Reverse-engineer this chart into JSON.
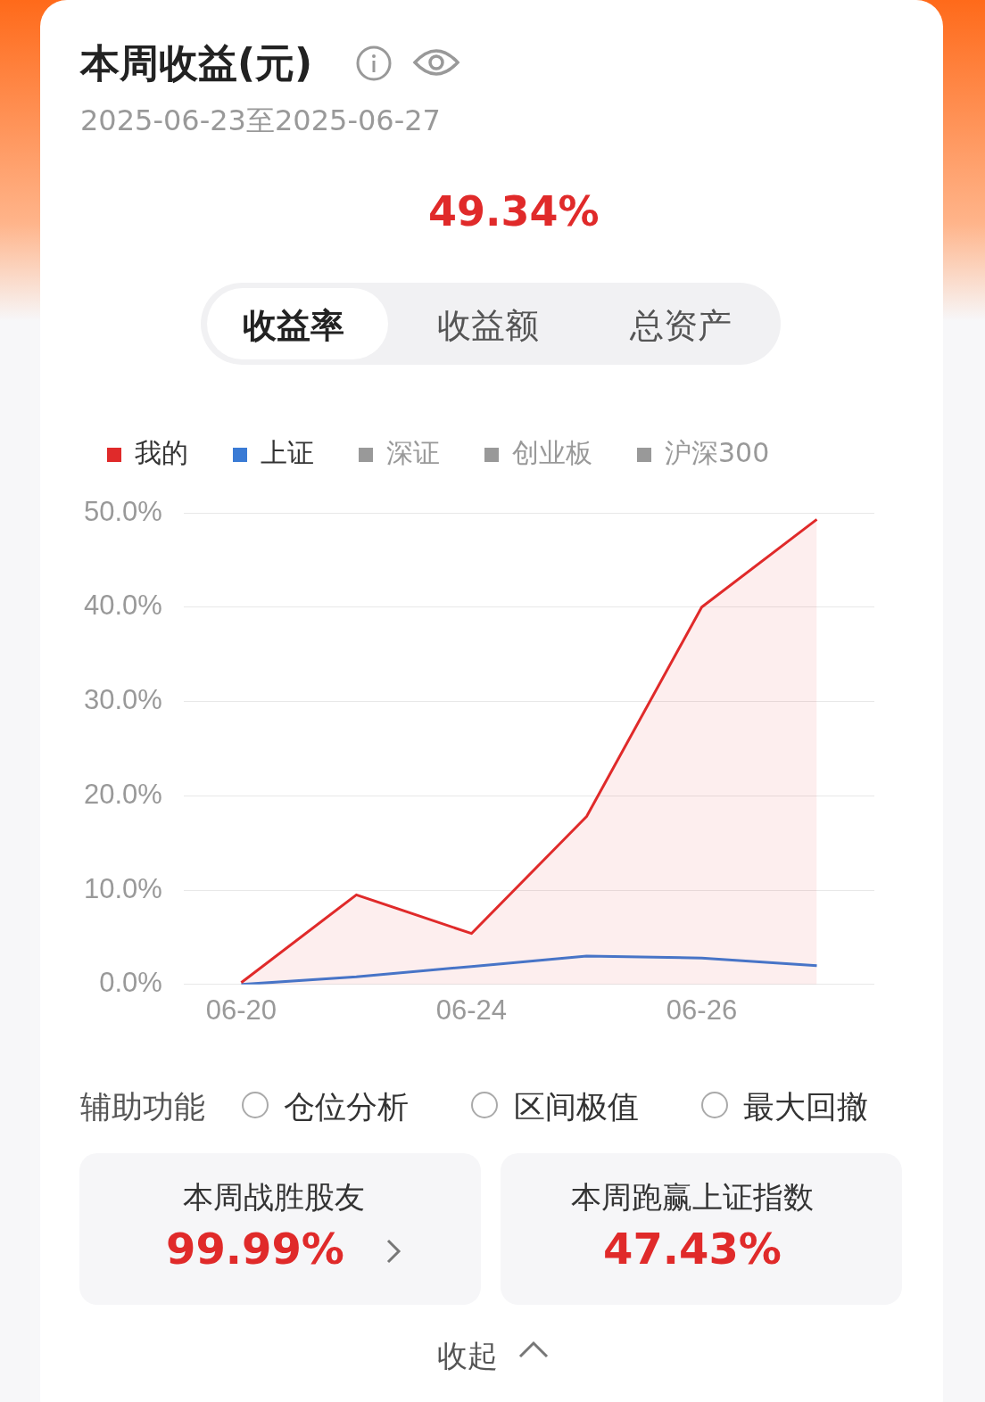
{
  "chart_data": {
    "type": "line",
    "title": "本周收益(元)",
    "subtitle": "2025-06-23至2025-06-27",
    "annotations": [
      "49.34%",
      "收益率",
      "收益额",
      "总资产",
      "辅助功能",
      "仓位分析",
      "区间极值",
      "最大回撤",
      "本周战胜股友",
      "99.99%",
      "本周跑赢上证指数",
      "47.43%",
      "收起"
    ],
    "categories": [
      "06-20",
      null,
      "06-24",
      null,
      "06-26",
      null
    ],
    "series": [
      {
        "name": "我的",
        "color": "#e02a2a",
        "type": "area",
        "values": [
          0.2,
          9.5,
          5.4,
          17.8,
          40.0,
          49.3
        ]
      },
      {
        "name": "上证",
        "color": "#3a7bd5",
        "values": [
          0.0,
          0.8,
          1.9,
          3.0,
          2.8,
          2.0
        ]
      },
      {
        "name": "深证",
        "color": "#999999",
        "type": "line",
        "values": [
          null,
          null,
          null,
          null,
          null,
          null
        ]
      },
      {
        "name": "创业板",
        "color": "#999999",
        "type": "line",
        "values": [
          null,
          null,
          null,
          null,
          null,
          null
        ]
      },
      {
        "name": "沪深300",
        "color": "#999999",
        "type": "line",
        "values": [
          null,
          null,
          null,
          null,
          null,
          null
        ]
      }
    ],
    "ylim": [
      0,
      50
    ],
    "yticks": [
      {
        "value": 0,
        "label": "0.0%"
      },
      {
        "value": 10,
        "label": "10.0%"
      },
      {
        "value": 20,
        "label": "20.0%"
      },
      {
        "value": 30,
        "label": "30.0%"
      },
      {
        "value": 40,
        "label": "40.0%"
      },
      {
        "value": 50,
        "label": "50.0%"
      }
    ],
    "grid": "y",
    "legend": "top left",
    "marker": "none"
  }
}
